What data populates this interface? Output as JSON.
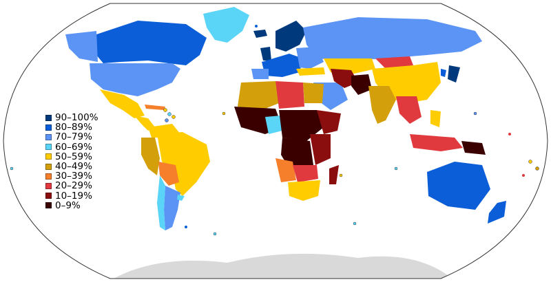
{
  "map": {
    "ocean_color": "#ffffff",
    "outline_color": "#333333",
    "antarctica_color": "#d9d9d9",
    "no_data_color": "#d9d9d9"
  },
  "legend": {
    "items": [
      {
        "label": "90–100%",
        "color": "#003a7d"
      },
      {
        "label": "80–89%",
        "color": "#0b5ed7"
      },
      {
        "label": "70–79%",
        "color": "#5b94f5"
      },
      {
        "label": "60–69%",
        "color": "#5ad4f7"
      },
      {
        "label": "50–59%",
        "color": "#ffcc00"
      },
      {
        "label": "40–49%",
        "color": "#d3a00b"
      },
      {
        "label": "30–39%",
        "color": "#f57f2a"
      },
      {
        "label": "20–29%",
        "color": "#e0393e"
      },
      {
        "label": "10–19%",
        "color": "#8b0e0e"
      },
      {
        "label": "0–9%",
        "color": "#3a0000"
      }
    ]
  }
}
